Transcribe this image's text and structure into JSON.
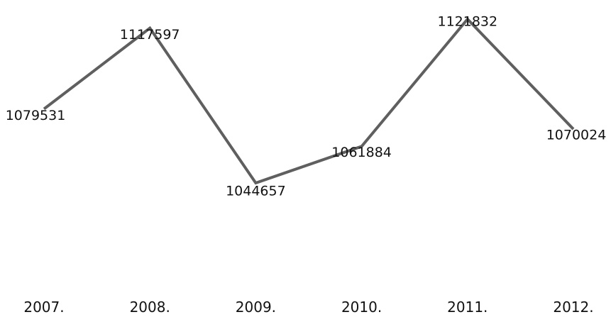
{
  "chart_data": {
    "type": "line",
    "categories": [
      "2007.",
      "2008.",
      "2009.",
      "2010.",
      "2011.",
      "2012."
    ],
    "series": [
      {
        "values": [
          1079531,
          1117597,
          1044657,
          1061884,
          1121832,
          1070024
        ]
      }
    ],
    "data_labels": [
      "1079531",
      "1117597",
      "1044657",
      "1061884",
      "1121832",
      "1070024"
    ],
    "ylim": [
      1000000,
      1125000
    ],
    "grid": false,
    "legend": "none",
    "line_color": "#5f5f5f",
    "text_color": "#111111"
  }
}
